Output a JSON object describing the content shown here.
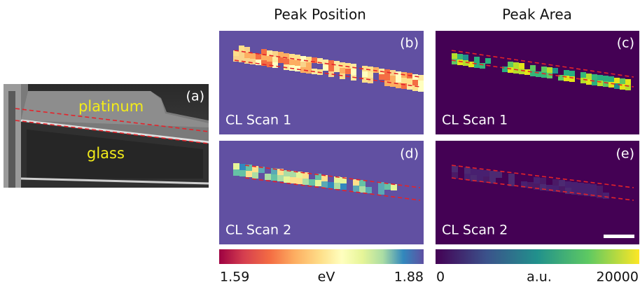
{
  "column_titles": [
    "Peak Position",
    "Peak Area"
  ],
  "panels": [
    {
      "label": "(a)",
      "annotations": [
        "platinum",
        "glass"
      ]
    },
    {
      "label": "(b)",
      "caption": "CL Scan 1"
    },
    {
      "label": "(c)",
      "caption": "CL Scan 1"
    },
    {
      "label": "(d)",
      "caption": "CL Scan 2"
    },
    {
      "label": "(e)",
      "caption": "CL Scan 2"
    }
  ],
  "colorbars": [
    {
      "min": "1.59",
      "unit": "eV",
      "max": "1.88"
    },
    {
      "min": "0",
      "unit": "a.u.",
      "max": "20000"
    }
  ]
}
